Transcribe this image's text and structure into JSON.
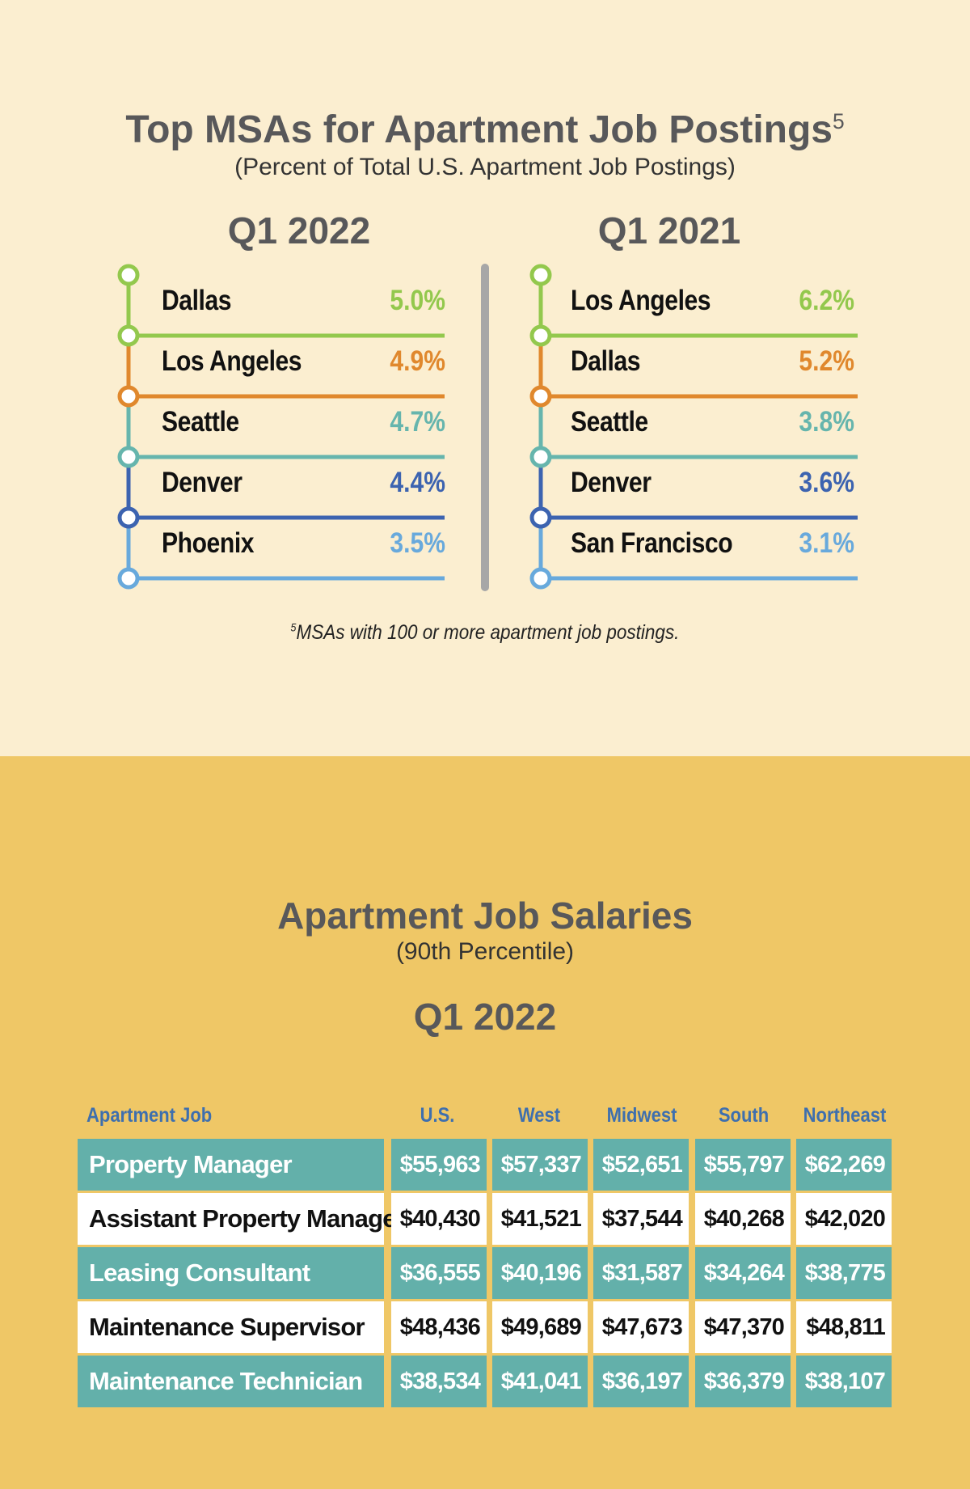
{
  "colors": {
    "rank1": "#93c84d",
    "rank2": "#e0882d",
    "rank3": "#66b5ad",
    "rank4": "#3c63b0",
    "rank5": "#68a9dc",
    "table_teal": "#63b0aa",
    "header_blue": "#3e6fae"
  },
  "postings": {
    "title": "Top MSAs for Apartment Job Postings",
    "title_sup": "5",
    "subtitle": "(Percent of Total U.S. Apartment Job Postings)",
    "footnote_sup": "5",
    "footnote": "MSAs with 100 or more apartment job postings."
  },
  "salaries": {
    "title": "Apartment Job Salaries",
    "subtitle": "(90th Percentile)",
    "period": "Q1 2022"
  },
  "chart_data": [
    {
      "type": "table",
      "title": "Top MSAs for Apartment Job Postings",
      "unit": "Percent of Total U.S. Apartment Job Postings",
      "groups": [
        {
          "label": "Q1 2022",
          "items": [
            {
              "msa": "Dallas",
              "value": 5.0,
              "label": "5.0%"
            },
            {
              "msa": "Los Angeles",
              "value": 4.9,
              "label": "4.9%"
            },
            {
              "msa": "Seattle",
              "value": 4.7,
              "label": "4.7%"
            },
            {
              "msa": "Denver",
              "value": 4.4,
              "label": "4.4%"
            },
            {
              "msa": "Phoenix",
              "value": 3.5,
              "label": "3.5%"
            }
          ]
        },
        {
          "label": "Q1 2021",
          "items": [
            {
              "msa": "Los Angeles",
              "value": 6.2,
              "label": "6.2%"
            },
            {
              "msa": "Dallas",
              "value": 5.2,
              "label": "5.2%"
            },
            {
              "msa": "Seattle",
              "value": 3.8,
              "label": "3.8%"
            },
            {
              "msa": "Denver",
              "value": 3.6,
              "label": "3.6%"
            },
            {
              "msa": "San Francisco",
              "value": 3.1,
              "label": "3.1%"
            }
          ]
        }
      ]
    },
    {
      "type": "table",
      "title": "Apartment Job Salaries",
      "columns": [
        "Apartment Job",
        "U.S.",
        "West",
        "Midwest",
        "South",
        "Northeast"
      ],
      "rows": [
        {
          "job": "Property Manager",
          "values": [
            "$55,963",
            "$57,337",
            "$52,651",
            "$55,797",
            "$62,269"
          ]
        },
        {
          "job": "Assistant Property Manager",
          "values": [
            "$40,430",
            "$41,521",
            "$37,544",
            "$40,268",
            "$42,020"
          ]
        },
        {
          "job": "Leasing Consultant",
          "values": [
            "$36,555",
            "$40,196",
            "$31,587",
            "$34,264",
            "$38,775"
          ]
        },
        {
          "job": "Maintenance Supervisor",
          "values": [
            "$48,436",
            "$49,689",
            "$47,673",
            "$47,370",
            "$48,811"
          ]
        },
        {
          "job": "Maintenance Technician",
          "values": [
            "$38,534",
            "$41,041",
            "$36,197",
            "$36,379",
            "$38,107"
          ]
        }
      ]
    }
  ]
}
